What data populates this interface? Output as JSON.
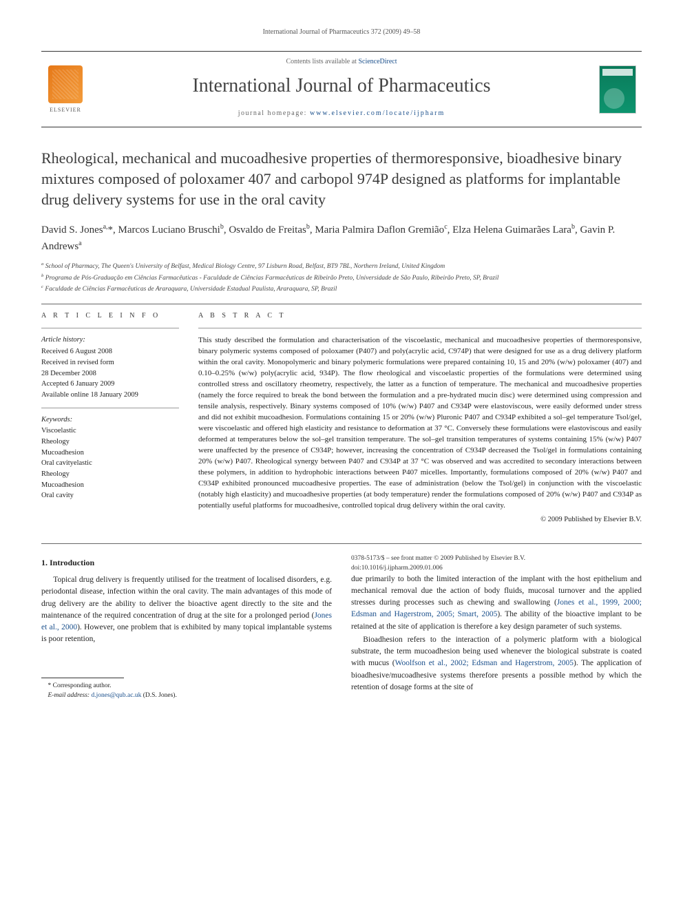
{
  "running_head": "International Journal of Pharmaceutics 372 (2009) 49–58",
  "header": {
    "contents_prefix": "Contents lists available at ",
    "contents_link": "ScienceDirect",
    "journal": "International Journal of Pharmaceutics",
    "homepage_prefix": "journal homepage: ",
    "homepage_url": "www.elsevier.com/locate/ijpharm",
    "publisher_word": "ELSEVIER"
  },
  "title": "Rheological, mechanical and mucoadhesive properties of thermoresponsive, bioadhesive binary mixtures composed of poloxamer 407 and carbopol 974P designed as platforms for implantable drug delivery systems for use in the oral cavity",
  "authors_html": "David S. Jones<sup>a,</sup>*, Marcos Luciano Bruschi<sup>b</sup>, Osvaldo de Freitas<sup>b</sup>, Maria Palmira Daflon Gremião<sup>c</sup>, Elza Helena Guimarães Lara<sup>b</sup>, Gavin P. Andrews<sup>a</sup>",
  "affiliations": [
    "a  School of Pharmacy, The Queen's University of Belfast, Medical Biology Centre, 97 Lisburn Road, Belfast, BT9 7BL, Northern Ireland, United Kingdom",
    "b  Programa de Pós-Graduação em Ciências Farmacêuticas - Faculdade de Ciências Farmacêuticas de Ribeirão Preto, Universidade de São Paulo, Ribeirão Preto, SP, Brazil",
    "c  Faculdade de Ciências Farmacêuticas de Araraquara, Universidade Estadual Paulista, Araraquara, SP, Brazil"
  ],
  "info": {
    "head": "A R T I C L E   I N F O",
    "history_label": "Article history:",
    "history": [
      "Received 6 August 2008",
      "Received in revised form",
      "28 December 2008",
      "Accepted 6 January 2009",
      "Available online 18 January 2009"
    ],
    "keywords_label": "Keywords:",
    "keywords": [
      "Viscoelastic",
      "Rheology",
      "Mucoadhesion",
      "Oral cavityelastic",
      "Rheology",
      "Mucoadhesion",
      "Oral cavity"
    ]
  },
  "abstract": {
    "head": "A B S T R A C T",
    "text": "This study described the formulation and characterisation of the viscoelastic, mechanical and mucoadhesive properties of thermoresponsive, binary polymeric systems composed of poloxamer (P407) and poly(acrylic acid, C974P) that were designed for use as a drug delivery platform within the oral cavity. Monopolymeric and binary polymeric formulations were prepared containing 10, 15 and 20% (w/w) poloxamer (407) and 0.10–0.25% (w/w) poly(acrylic acid, 934P). The flow rheological and viscoelastic properties of the formulations were determined using controlled stress and oscillatory rheometry, respectively, the latter as a function of temperature. The mechanical and mucoadhesive properties (namely the force required to break the bond between the formulation and a pre-hydrated mucin disc) were determined using compression and tensile analysis, respectively. Binary systems composed of 10% (w/w) P407 and C934P were elastoviscous, were easily deformed under stress and did not exhibit mucoadhesion. Formulations containing 15 or 20% (w/w) Pluronic P407 and C934P exhibited a sol–gel temperature Tsol/gel, were viscoelastic and offered high elasticity and resistance to deformation at 37 °C. Conversely these formulations were elastoviscous and easily deformed at temperatures below the sol–gel transition temperature. The sol–gel transition temperatures of systems containing 15% (w/w) P407 were unaffected by the presence of C934P; however, increasing the concentration of C934P decreased the Tsol/gel in formulations containing 20% (w/w) P407. Rheological synergy between P407 and C934P at 37 °C was observed and was accredited to secondary interactions between these polymers, in addition to hydrophobic interactions between P407 micelles. Importantly, formulations composed of 20% (w/w) P407 and C934P exhibited pronounced mucoadhesive properties. The ease of administration (below the Tsol/gel) in conjunction with the viscoelastic (notably high elasticity) and mucoadhesive properties (at body temperature) render the formulations composed of 20% (w/w) P407 and C934P as potentially useful platforms for mucoadhesive, controlled topical drug delivery within the oral cavity.",
    "copyright": "© 2009 Published by Elsevier B.V."
  },
  "body": {
    "section_head": "1.  Introduction",
    "p1": "Topical drug delivery is frequently utilised for the treatment of localised disorders, e.g. periodontal disease, infection within the oral cavity. The main advantages of this mode of drug delivery are the ability to deliver the bioactive agent directly to the site and the maintenance of the required concentration of drug at the site for a prolonged period (",
    "p1_cite": "Jones et al., 2000",
    "p1_tail": "). However, one problem that is exhibited by many topical implantable systems is poor retention,",
    "p2a": "due primarily to both the limited interaction of the implant with the host epithelium and mechanical removal due the action of body fluids, mucosal turnover and the applied stresses during processes such as chewing and swallowing (",
    "p2_cite": "Jones et al., 1999, 2000; Edsman and Hagerstrom, 2005; Smart, 2005",
    "p2b": "). The ability of the bioactive implant to be retained at the site of application is therefore a key design parameter of such systems.",
    "p3a": "Bioadhesion refers to the interaction of a polymeric platform with a biological substrate, the term mucoadhesion being used whenever the biological substrate is coated with mucus (",
    "p3_cite": "Woolfson et al., 2002; Edsman and Hagerstrom, 2005",
    "p3b": "). The application of bioadhesive/mucoadhesive systems therefore presents a possible method by which the retention of dosage forms at the site of"
  },
  "footnote": {
    "corr": "* Corresponding author.",
    "email_label": "E-mail address: ",
    "email": "d.jones@qub.ac.uk",
    "email_tail": " (D.S. Jones)."
  },
  "footer": {
    "line1": "0378-5173/$ – see front matter © 2009 Published by Elsevier B.V.",
    "line2": "doi:10.1016/j.ijpharm.2009.01.006"
  }
}
